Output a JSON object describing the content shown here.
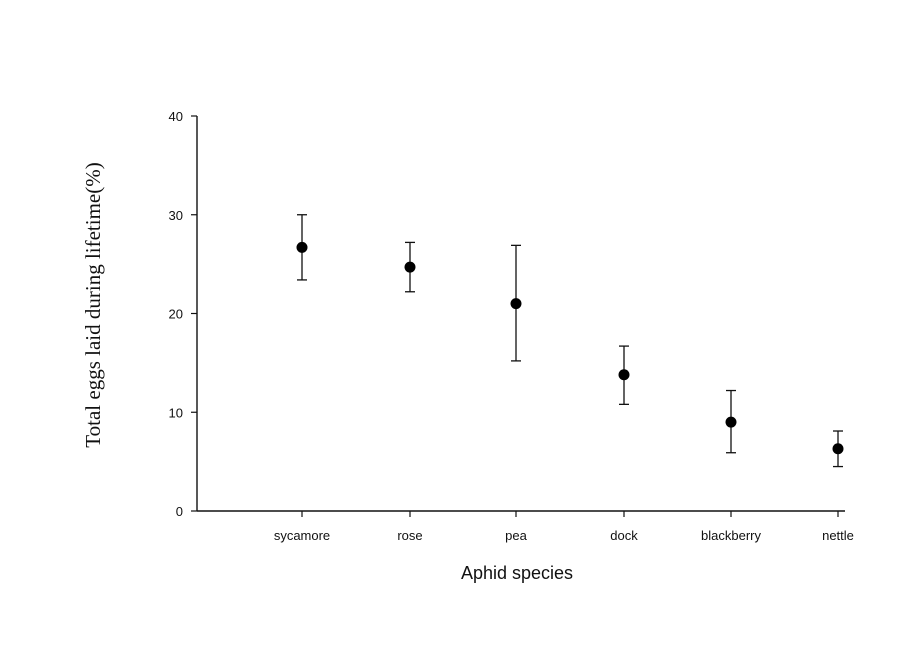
{
  "chart_data": {
    "type": "scatter",
    "title": "",
    "xlabel": "Aphid species",
    "ylabel": "Total eggs laid during lifetime(%)",
    "categories": [
      "sycamore",
      "rose",
      "pea",
      "dock",
      "blackberry",
      "nettle"
    ],
    "values": [
      26.7,
      24.7,
      21.0,
      13.8,
      9.0,
      6.3
    ],
    "error_low": [
      23.4,
      22.2,
      15.2,
      10.8,
      5.9,
      4.5
    ],
    "error_high": [
      30.0,
      27.2,
      26.9,
      16.7,
      12.2,
      8.1
    ],
    "ylim": [
      0,
      40
    ],
    "yticks": [
      "0",
      "10",
      "20",
      "30",
      "40"
    ],
    "grid": false,
    "marker_color": "#000000"
  }
}
